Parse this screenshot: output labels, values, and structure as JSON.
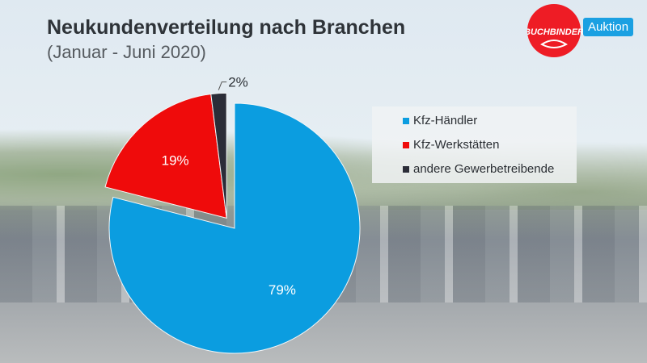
{
  "title": "Neukundenverteilung nach Branchen",
  "subtitle": "(Januar - Juni 2020)",
  "logo": {
    "brand": "BUCHBINDER",
    "badge": "Auktion",
    "brand_color": "#ee1c25",
    "badge_color": "#1aa0e2"
  },
  "chart_data": {
    "type": "pie",
    "title": "Neukundenverteilung nach Branchen",
    "subtitle": "(Januar - Juni 2020)",
    "categories": [
      "Kfz-Händler",
      "Kfz-Werkstätten",
      "andere Gewerbetreibende"
    ],
    "values": [
      79,
      19,
      2
    ],
    "labels": [
      "79%",
      "19%",
      "2%"
    ],
    "colors": [
      "#0b9de0",
      "#ef0b0b",
      "#2b2d38"
    ],
    "exploded": [
      "Kfz-Werkstätten",
      "andere Gewerbetreibende"
    ],
    "legend_position": "right"
  }
}
